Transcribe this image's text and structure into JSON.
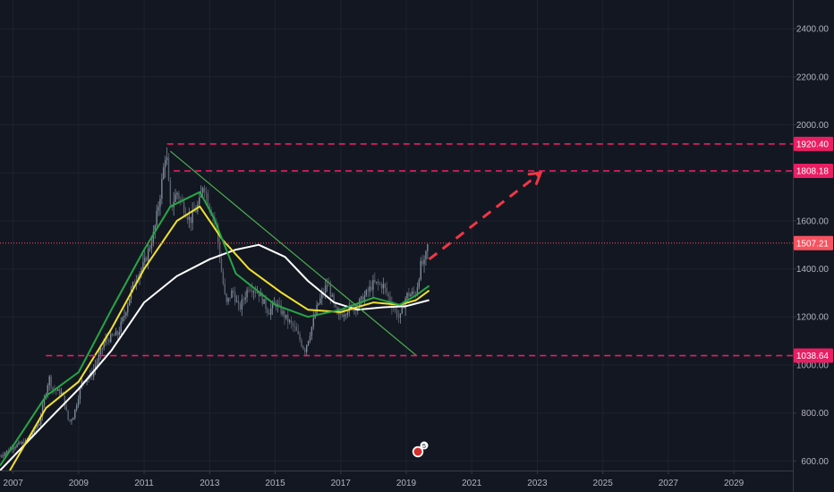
{
  "chart_data": {
    "type": "candlestick",
    "title": "",
    "xlabel": "",
    "ylabel": "",
    "ylim": [
      560,
      2520
    ],
    "xlim": [
      2006.6,
      2030.8
    ],
    "grid": true,
    "y_ticks": [
      "600.00",
      "800.00",
      "1000.00",
      "1200.00",
      "1400.00",
      "1600.00",
      "1800.00",
      "2000.00",
      "2200.00",
      "2400.00"
    ],
    "x_ticks": [
      "2007",
      "2009",
      "2011",
      "2013",
      "2015",
      "2017",
      "2019",
      "2021",
      "2023",
      "2025",
      "2027",
      "2029"
    ],
    "horizontal_levels": [
      {
        "label": "1920.40",
        "value": 1920.4,
        "x_start": 2011.7
      },
      {
        "label": "1808.18",
        "value": 1808.18,
        "x_start": 2011.9
      },
      {
        "label": "1038.64",
        "value": 1038.64,
        "x_start": 2008.0
      }
    ],
    "current_price": {
      "label": "1507.21",
      "value": 1507.21
    },
    "price_path": [
      [
        2006.6,
        620
      ],
      [
        2007.0,
        660
      ],
      [
        2007.4,
        680
      ],
      [
        2007.8,
        760
      ],
      [
        2008.1,
        950
      ],
      [
        2008.2,
        900
      ],
      [
        2008.5,
        880
      ],
      [
        2008.7,
        760
      ],
      [
        2008.85,
        790
      ],
      [
        2009.1,
        930
      ],
      [
        2009.4,
        960
      ],
      [
        2009.8,
        1100
      ],
      [
        2010.2,
        1130
      ],
      [
        2010.4,
        1210
      ],
      [
        2010.7,
        1350
      ],
      [
        2011.0,
        1420
      ],
      [
        2011.3,
        1550
      ],
      [
        2011.5,
        1720
      ],
      [
        2011.67,
        1900
      ],
      [
        2011.8,
        1650
      ],
      [
        2012.0,
        1720
      ],
      [
        2012.4,
        1600
      ],
      [
        2012.7,
        1680
      ],
      [
        2012.8,
        1760
      ],
      [
        2013.0,
        1660
      ],
      [
        2013.2,
        1580
      ],
      [
        2013.35,
        1400
      ],
      [
        2013.5,
        1250
      ],
      [
        2013.7,
        1310
      ],
      [
        2013.9,
        1230
      ],
      [
        2014.2,
        1330
      ],
      [
        2014.5,
        1300
      ],
      [
        2014.8,
        1220
      ],
      [
        2015.0,
        1260
      ],
      [
        2015.3,
        1200
      ],
      [
        2015.6,
        1150
      ],
      [
        2015.9,
        1060
      ],
      [
        2016.1,
        1150
      ],
      [
        2016.3,
        1250
      ],
      [
        2016.6,
        1340
      ],
      [
        2016.9,
        1200
      ],
      [
        2017.2,
        1230
      ],
      [
        2017.5,
        1250
      ],
      [
        2017.7,
        1280
      ],
      [
        2018.0,
        1340
      ],
      [
        2018.3,
        1330
      ],
      [
        2018.6,
        1240
      ],
      [
        2018.8,
        1190
      ],
      [
        2019.0,
        1290
      ],
      [
        2019.3,
        1300
      ],
      [
        2019.45,
        1420
      ],
      [
        2019.55,
        1420
      ],
      [
        2019.7,
        1530
      ]
    ],
    "series": [
      {
        "name": "",
        "color": "#ffffff",
        "values": [
          [
            2006.6,
            560
          ],
          [
            2008.0,
            760
          ],
          [
            2009.0,
            900
          ],
          [
            2010.0,
            1060
          ],
          [
            2011.0,
            1260
          ],
          [
            2012.0,
            1370
          ],
          [
            2013.0,
            1440
          ],
          [
            2013.8,
            1480
          ],
          [
            2014.5,
            1500
          ],
          [
            2015.3,
            1450
          ],
          [
            2016.0,
            1350
          ],
          [
            2016.8,
            1260
          ],
          [
            2017.5,
            1230
          ],
          [
            2018.3,
            1240
          ],
          [
            2019.0,
            1245
          ],
          [
            2019.7,
            1270
          ]
        ]
      },
      {
        "name": "",
        "color": "#f0e130",
        "values": [
          [
            2006.9,
            560
          ],
          [
            2008.0,
            820
          ],
          [
            2009.0,
            930
          ],
          [
            2010.0,
            1150
          ],
          [
            2011.0,
            1400
          ],
          [
            2012.0,
            1600
          ],
          [
            2012.7,
            1660
          ],
          [
            2013.4,
            1520
          ],
          [
            2014.2,
            1400
          ],
          [
            2015.2,
            1300
          ],
          [
            2016.0,
            1230
          ],
          [
            2017.0,
            1220
          ],
          [
            2018.0,
            1260
          ],
          [
            2018.8,
            1250
          ],
          [
            2019.3,
            1270
          ],
          [
            2019.7,
            1310
          ]
        ]
      },
      {
        "name": "",
        "color": "#26a645",
        "values": [
          [
            2006.6,
            580
          ],
          [
            2008.0,
            870
          ],
          [
            2009.0,
            970
          ],
          [
            2010.0,
            1230
          ],
          [
            2011.0,
            1480
          ],
          [
            2011.8,
            1660
          ],
          [
            2012.7,
            1720
          ],
          [
            2013.1,
            1620
          ],
          [
            2013.8,
            1380
          ],
          [
            2015.0,
            1250
          ],
          [
            2016.0,
            1200
          ],
          [
            2017.0,
            1230
          ],
          [
            2018.0,
            1280
          ],
          [
            2018.8,
            1250
          ],
          [
            2019.3,
            1290
          ],
          [
            2019.7,
            1330
          ]
        ]
      },
      {
        "name": "",
        "color": "#4caf50",
        "values": [
          [
            2011.8,
            1890
          ],
          [
            2019.3,
            1040
          ]
        ]
      }
    ],
    "projection": {
      "color": "#f23645",
      "from": [
        2019.7,
        1440
      ],
      "to": [
        2023.1,
        1800
      ]
    },
    "colors": {
      "background": "#131722",
      "level": "#e91e63",
      "tag": "#e91e63",
      "current": "#f7525f",
      "up": "#7d8b99",
      "down": "#5d6470"
    }
  }
}
